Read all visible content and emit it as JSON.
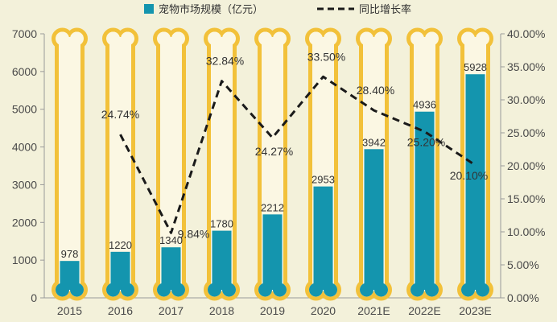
{
  "chart_data": {
    "type": "bar",
    "categories": [
      "2015",
      "2016",
      "2017",
      "2018",
      "2019",
      "2020",
      "2021E",
      "2022E",
      "2023E"
    ],
    "series": [
      {
        "name": "宠物市场规模（亿元）",
        "type": "bar",
        "axis": "left",
        "values": [
          978,
          1220,
          1340,
          1780,
          2212,
          2953,
          3942,
          4936,
          5928
        ],
        "labels": [
          "978",
          "1220",
          "1340",
          "1780",
          "2212",
          "2953",
          "3942",
          "4936",
          "5928"
        ]
      },
      {
        "name": "同比增长率",
        "type": "line",
        "axis": "right",
        "values": [
          null,
          24.74,
          9.84,
          32.84,
          24.27,
          33.5,
          28.4,
          25.2,
          20.1
        ],
        "labels": [
          "",
          "24.74%",
          "9.84%",
          "32.84%",
          "24.27%",
          "33.50%",
          "28.40%",
          "25.20%",
          "20.10%"
        ]
      }
    ],
    "y_left": {
      "min": 0,
      "max": 7000,
      "ticks": [
        "0",
        "1000",
        "2000",
        "3000",
        "4000",
        "5000",
        "6000",
        "7000"
      ]
    },
    "y_right": {
      "min": 0,
      "max": 40,
      "ticks": [
        "0.00%",
        "5.00%",
        "10.00%",
        "15.00%",
        "20.00%",
        "25.00%",
        "30.00%",
        "35.00%",
        "40.00%"
      ]
    },
    "legend_position": "top",
    "grid": false,
    "colors": {
      "background": "#f3f1da",
      "bar": "#1495ae",
      "bone_outline": "#f2c13a",
      "bone_fill": "#fbf7e3",
      "line": "#1a1a1a",
      "axis": "#9a9a9a"
    }
  }
}
